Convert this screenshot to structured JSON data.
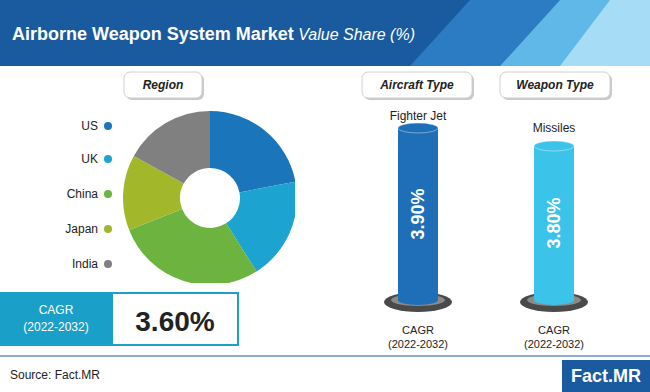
{
  "title": "Airborne Weapon System Market",
  "subtitle": "Value Share (%)",
  "chart_data": {
    "type": "pie",
    "title": "Region",
    "categories": [
      "US",
      "UK",
      "China",
      "Japan",
      "India"
    ],
    "values": [
      22,
      19,
      28,
      14,
      17
    ],
    "colors": [
      "#1b75bb",
      "#1ca3cf",
      "#6cb33f",
      "#a2b72a",
      "#808080"
    ],
    "legend": "left",
    "data_labels": false
  },
  "cagr": {
    "label": "CAGR",
    "period": "(2022-2032)",
    "value": "3.60%"
  },
  "segments": [
    {
      "heading": "Aircraft Type",
      "name": "Fighter Jet",
      "cagr": "3.90%",
      "label": "CAGR",
      "period": "(2022-2032)",
      "color": "#1f6fb8"
    },
    {
      "heading": "Weapon Type",
      "name": "Missiles",
      "cagr": "3.80%",
      "label": "CAGR",
      "period": "(2022-2032)",
      "color": "#3cc3ea"
    }
  ],
  "source": "Source: Fact.MR",
  "logo": "Fact.MR"
}
